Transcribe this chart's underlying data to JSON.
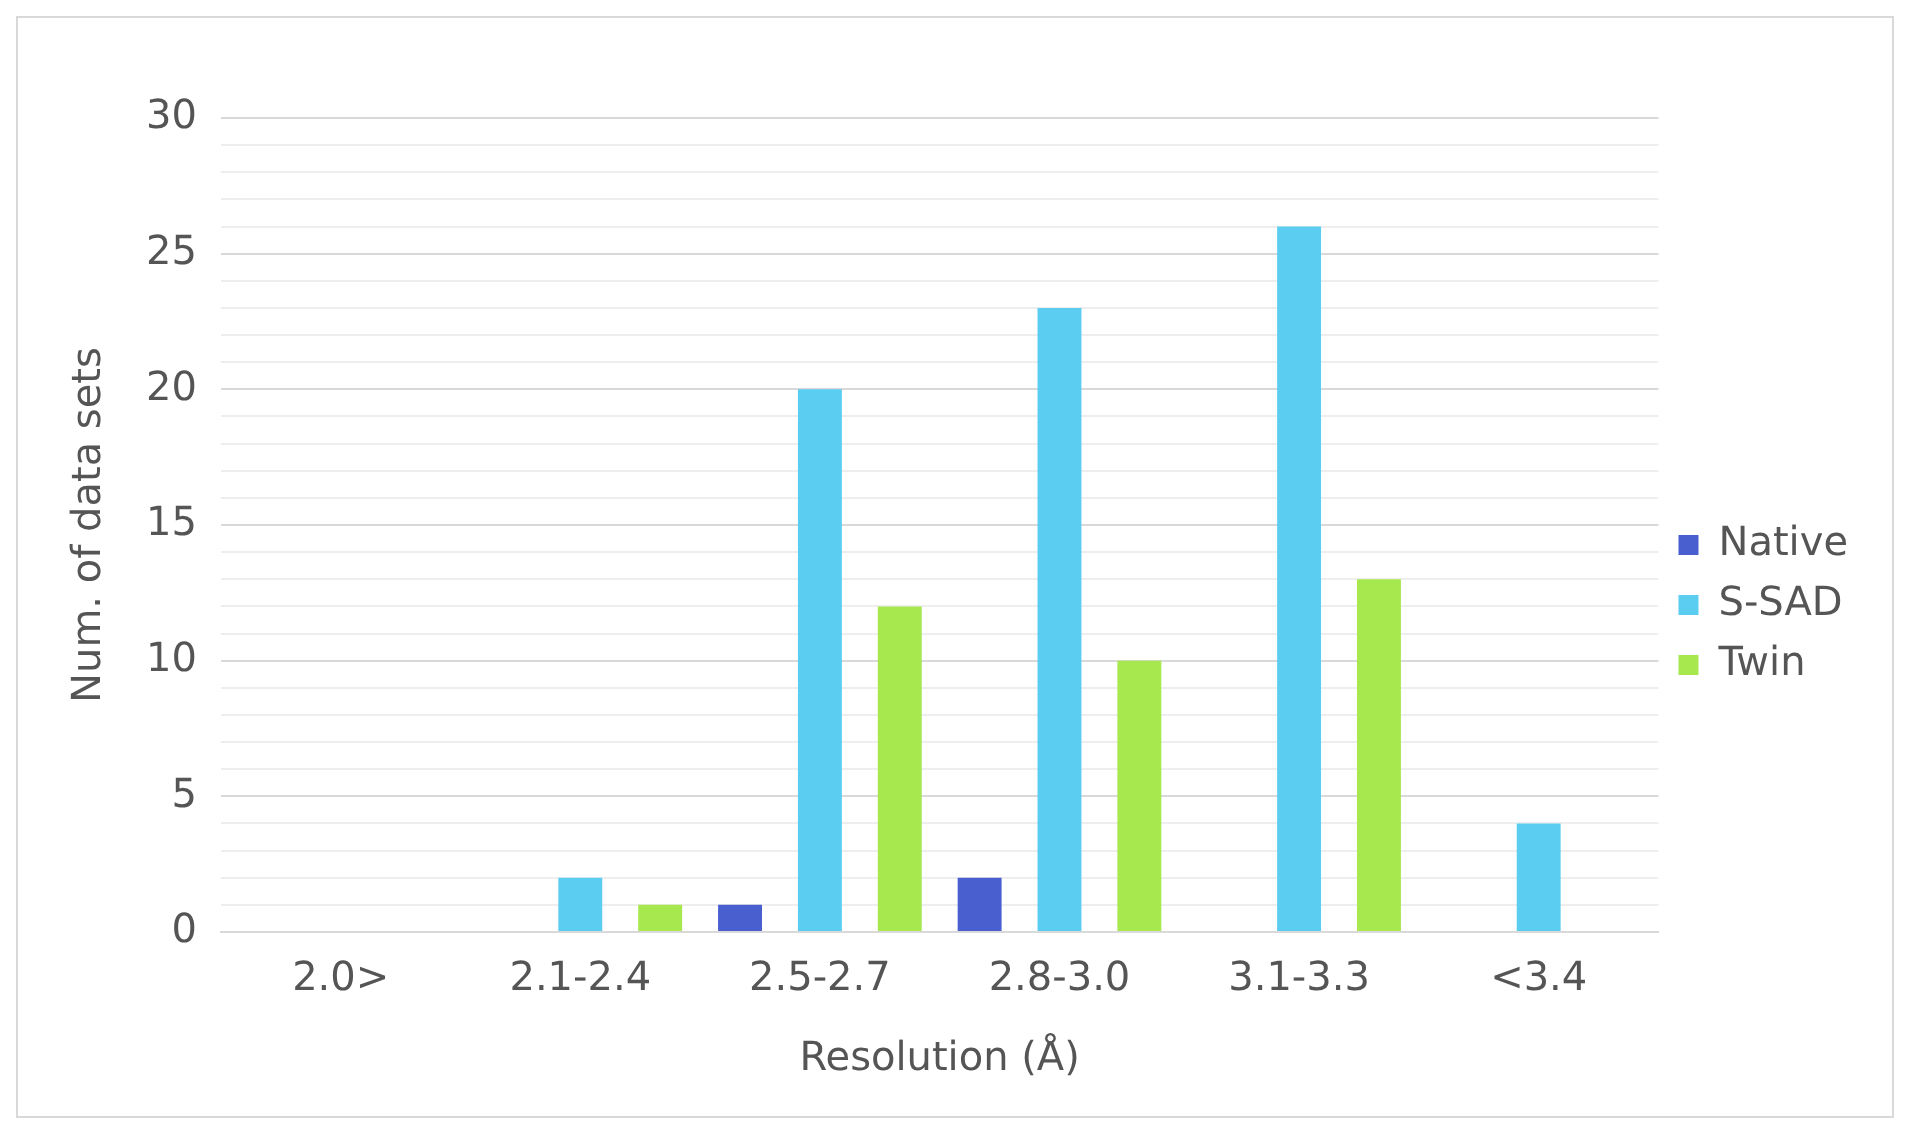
{
  "chart_data": {
    "type": "bar",
    "xlabel": "Resolution (Å)",
    "ylabel": "Num. of data sets",
    "categories": [
      "2.0>",
      "2.1-2.4",
      "2.5-2.7",
      "2.8-3.0",
      "3.1-3.3",
      "<3.4"
    ],
    "series": [
      {
        "name": "Native",
        "color": "#4a5fcf",
        "values": [
          0,
          0,
          1,
          2,
          0,
          0
        ]
      },
      {
        "name": "S-SAD",
        "color": "#5bcdf0",
        "values": [
          0,
          2,
          20,
          23,
          26,
          4
        ]
      },
      {
        "name": "Twin",
        "color": "#a6e84e",
        "values": [
          0,
          1,
          12,
          10,
          13,
          0
        ]
      }
    ],
    "ylim": [
      0,
      30
    ],
    "yticks": [
      0,
      {
        "value": 1,
        "label": null
      },
      {
        "value": 2,
        "label": null
      },
      {
        "value": 3,
        "label": null
      },
      {
        "value": 4,
        "label": null
      },
      5,
      {
        "value": 6,
        "label": null
      },
      {
        "value": 7,
        "label": null
      },
      {
        "value": 8,
        "label": null
      },
      {
        "value": 9,
        "label": null
      },
      10,
      {
        "value": 11,
        "label": null
      },
      {
        "value": 12,
        "label": null
      },
      {
        "value": 13,
        "label": null
      },
      {
        "value": 14,
        "label": null
      },
      15,
      {
        "value": 16,
        "label": null
      },
      {
        "value": 17,
        "label": null
      },
      {
        "value": 18,
        "label": null
      },
      {
        "value": 19,
        "label": null
      },
      20,
      {
        "value": 21,
        "label": null
      },
      {
        "value": 22,
        "label": null
      },
      {
        "value": 23,
        "label": null
      },
      {
        "value": 24,
        "label": null
      },
      25,
      {
        "value": 26,
        "label": null
      },
      {
        "value": 27,
        "label": null
      },
      {
        "value": 28,
        "label": null
      },
      {
        "value": 29,
        "label": null
      },
      30
    ],
    "grid": "y",
    "legend": "right"
  }
}
